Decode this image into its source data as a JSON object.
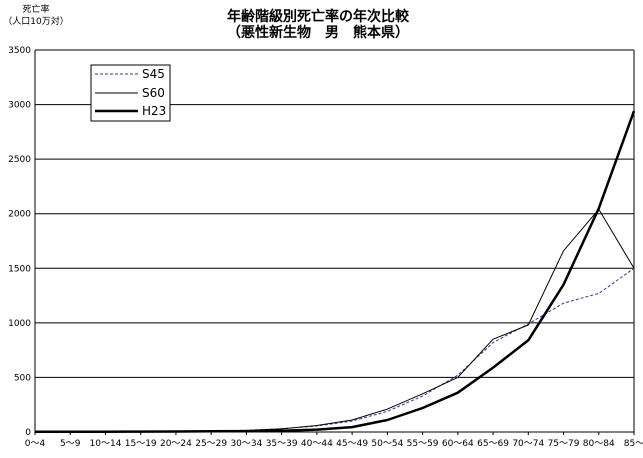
{
  "chart_data": {
    "type": "line",
    "title": "年齢階級別死亡率の年次比較",
    "subtitle": "（悪性新生物　男　熊本県）",
    "ylabel": "死亡率",
    "ylabel_sub": "（人口10万対）",
    "xlabel": "",
    "ylim": [
      0,
      3500
    ],
    "yticks": [
      0,
      500,
      1000,
      1500,
      2000,
      2500,
      3000,
      3500
    ],
    "grid": true,
    "legend_position": "top-left",
    "categories": [
      "0～4",
      "5～9",
      "10～14",
      "15～19",
      "20～24",
      "25～29",
      "30～34",
      "35～39",
      "40～44",
      "45～49",
      "50～54",
      "55～59",
      "60～64",
      "65～69",
      "70～74",
      "75～79",
      "80～84",
      "85～"
    ],
    "series": [
      {
        "name": "S45",
        "color": "#3333aa",
        "style": "dashed",
        "values": [
          5,
          5,
          4,
          6,
          8,
          10,
          16,
          30,
          55,
          100,
          190,
          330,
          520,
          820,
          990,
          1180,
          1270,
          1500
        ]
      },
      {
        "name": "S60",
        "color": "#000000",
        "style": "thin",
        "values": [
          5,
          4,
          4,
          5,
          7,
          9,
          14,
          28,
          60,
          110,
          210,
          350,
          500,
          850,
          980,
          1660,
          2040,
          1500
        ]
      },
      {
        "name": "H23",
        "color": "#000000",
        "style": "thick",
        "values": [
          3,
          3,
          3,
          4,
          5,
          6,
          8,
          12,
          22,
          45,
          110,
          220,
          360,
          590,
          840,
          1350,
          2050,
          2940
        ]
      }
    ]
  }
}
